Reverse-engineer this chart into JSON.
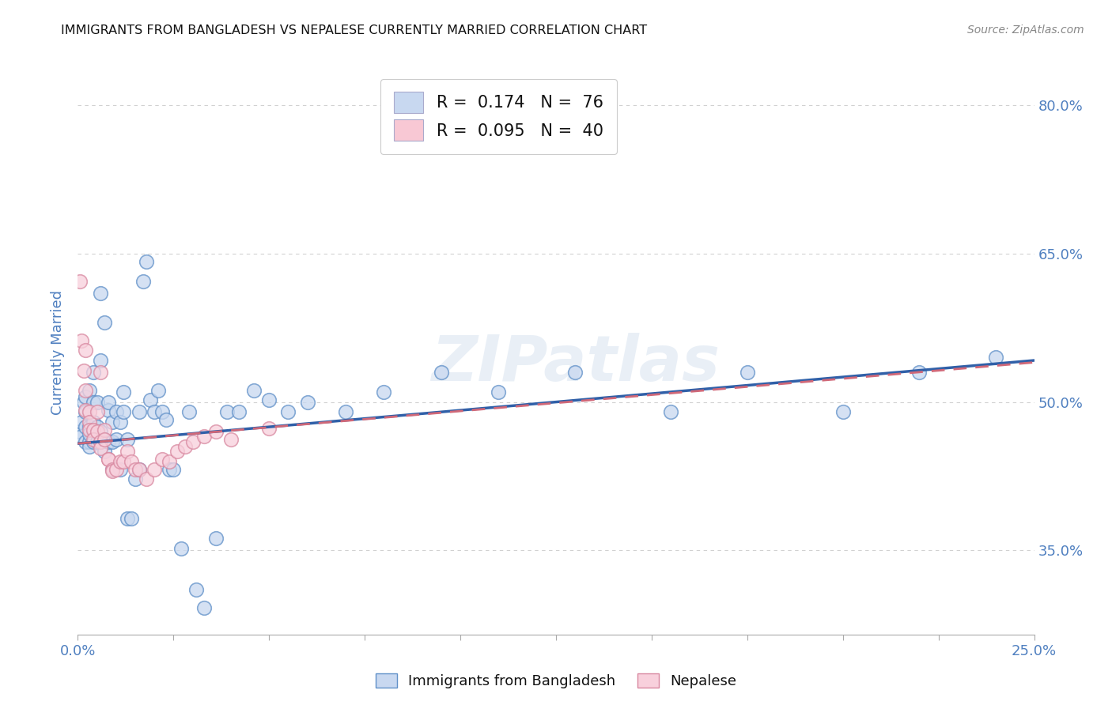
{
  "title": "IMMIGRANTS FROM BANGLADESH VS NEPALESE CURRENTLY MARRIED CORRELATION CHART",
  "source": "Source: ZipAtlas.com",
  "ylabel_label": "Currently Married",
  "y_tick_vals": [
    0.35,
    0.5,
    0.65,
    0.8
  ],
  "y_tick_labels": [
    "35.0%",
    "50.0%",
    "65.0%",
    "80.0%"
  ],
  "x_range": [
    0.0,
    0.25
  ],
  "y_range": [
    0.265,
    0.835
  ],
  "watermark": "ZIPatlas",
  "blue_scatter_x": [
    0.0005,
    0.001,
    0.001,
    0.0015,
    0.002,
    0.002,
    0.002,
    0.002,
    0.003,
    0.003,
    0.003,
    0.003,
    0.003,
    0.004,
    0.004,
    0.004,
    0.004,
    0.005,
    0.005,
    0.005,
    0.005,
    0.006,
    0.006,
    0.006,
    0.006,
    0.007,
    0.007,
    0.007,
    0.008,
    0.008,
    0.008,
    0.009,
    0.009,
    0.009,
    0.01,
    0.01,
    0.011,
    0.011,
    0.012,
    0.012,
    0.013,
    0.013,
    0.014,
    0.015,
    0.016,
    0.016,
    0.017,
    0.018,
    0.019,
    0.02,
    0.021,
    0.022,
    0.023,
    0.024,
    0.025,
    0.027,
    0.029,
    0.031,
    0.033,
    0.036,
    0.039,
    0.042,
    0.046,
    0.05,
    0.055,
    0.06,
    0.07,
    0.08,
    0.095,
    0.11,
    0.13,
    0.155,
    0.175,
    0.2,
    0.22,
    0.24
  ],
  "blue_scatter_y": [
    0.47,
    0.48,
    0.465,
    0.5,
    0.46,
    0.49,
    0.505,
    0.475,
    0.475,
    0.46,
    0.468,
    0.512,
    0.455,
    0.48,
    0.53,
    0.46,
    0.5,
    0.475,
    0.5,
    0.47,
    0.46,
    0.61,
    0.542,
    0.47,
    0.46,
    0.58,
    0.462,
    0.45,
    0.492,
    0.5,
    0.46,
    0.46,
    0.48,
    0.432,
    0.462,
    0.49,
    0.48,
    0.432,
    0.49,
    0.51,
    0.462,
    0.382,
    0.382,
    0.422,
    0.49,
    0.432,
    0.622,
    0.642,
    0.502,
    0.49,
    0.512,
    0.49,
    0.482,
    0.432,
    0.432,
    0.352,
    0.49,
    0.31,
    0.292,
    0.362,
    0.49,
    0.49,
    0.512,
    0.502,
    0.49,
    0.5,
    0.49,
    0.51,
    0.53,
    0.51,
    0.53,
    0.49,
    0.53,
    0.49,
    0.53,
    0.545
  ],
  "pink_scatter_x": [
    0.0005,
    0.001,
    0.0015,
    0.002,
    0.002,
    0.002,
    0.003,
    0.003,
    0.003,
    0.004,
    0.004,
    0.005,
    0.005,
    0.006,
    0.006,
    0.006,
    0.007,
    0.007,
    0.008,
    0.008,
    0.009,
    0.009,
    0.01,
    0.011,
    0.012,
    0.013,
    0.014,
    0.015,
    0.016,
    0.018,
    0.02,
    0.022,
    0.024,
    0.026,
    0.028,
    0.03,
    0.033,
    0.036,
    0.04,
    0.05
  ],
  "pink_scatter_y": [
    0.622,
    0.562,
    0.532,
    0.552,
    0.512,
    0.492,
    0.49,
    0.48,
    0.472,
    0.472,
    0.462,
    0.49,
    0.47,
    0.53,
    0.46,
    0.453,
    0.472,
    0.462,
    0.442,
    0.442,
    0.432,
    0.43,
    0.432,
    0.44,
    0.44,
    0.45,
    0.44,
    0.432,
    0.432,
    0.422,
    0.432,
    0.442,
    0.44,
    0.45,
    0.455,
    0.46,
    0.465,
    0.47,
    0.462,
    0.473
  ],
  "blue_line_x": [
    0.0,
    0.25
  ],
  "blue_line_y": [
    0.458,
    0.542
  ],
  "pink_line_x": [
    0.0,
    0.25
  ],
  "pink_line_y": [
    0.458,
    0.54
  ],
  "blue_color_fill": "#c8d8f0",
  "blue_color_edge": "#6090c8",
  "pink_color_fill": "#f8d0dc",
  "pink_color_edge": "#d888a0",
  "blue_line_color": "#3060a8",
  "pink_line_color": "#d06878",
  "grid_color": "#cccccc",
  "title_color": "#111111",
  "axis_label_color": "#5080c0",
  "source_color": "#888888",
  "legend_box_color": "#c8d8f0",
  "legend_box_color2": "#f8c8d4"
}
